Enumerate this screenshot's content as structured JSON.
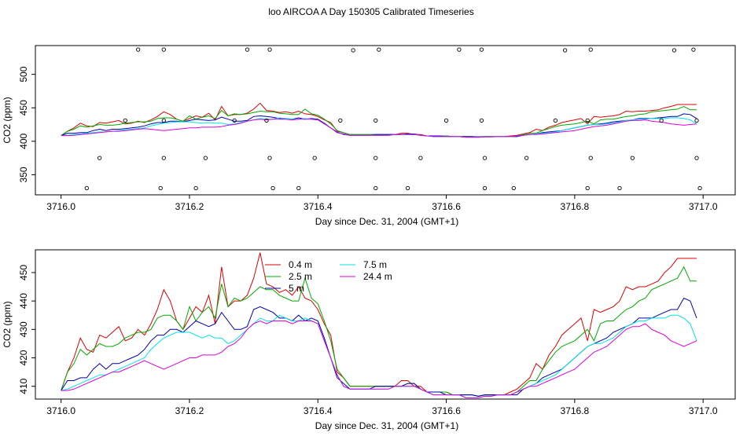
{
  "title": "loo AIRCOA A  Day 150305  Calibrated Timeseries",
  "colors": {
    "axis": "#000000",
    "series": [
      "#dd0000",
      "#00aa00",
      "#0000aa",
      "#00e5e5",
      "#dd00dd"
    ]
  },
  "chart_data": [
    {
      "type": "line",
      "title": "",
      "xlabel": "Day since Dec. 31, 2004 (GMT+1)",
      "ylabel": "CO2 (ppm)",
      "xlim": [
        3715.96,
        3717.05
      ],
      "ylim": [
        320,
        543
      ],
      "xticks": [
        "3716.0",
        "3716.2",
        "3716.4",
        "3716.6",
        "3716.8",
        "3717.0"
      ],
      "yticks": [
        "350",
        "400",
        "450",
        "500"
      ],
      "legend": false,
      "points": {
        "marker": "open-circle",
        "x": [
          3716.04,
          3716.06,
          3716.1,
          3716.12,
          3716.155,
          3716.16,
          3716.16,
          3716.16,
          3716.21,
          3716.225,
          3716.27,
          3716.29,
          3716.32,
          3716.325,
          3716.325,
          3716.33,
          3716.37,
          3716.395,
          3716.435,
          3716.455,
          3716.49,
          3716.49,
          3716.49,
          3716.495,
          3716.54,
          3716.56,
          3716.6,
          3716.62,
          3716.655,
          3716.655,
          3716.66,
          3716.66,
          3716.705,
          3716.725,
          3716.77,
          3716.785,
          3716.82,
          3716.82,
          3716.825,
          3716.825,
          3716.87,
          3716.89,
          3716.935,
          3716.955,
          3716.985,
          3716.99,
          3716.99,
          3716.995
        ],
        "y": [
          330,
          375,
          431,
          537,
          330,
          375,
          431,
          537,
          330,
          375,
          431,
          537,
          431,
          537,
          375,
          330,
          330,
          375,
          431,
          536,
          330,
          375,
          431,
          537,
          330,
          375,
          431,
          537,
          431,
          537,
          375,
          330,
          330,
          375,
          431,
          536,
          330,
          431,
          375,
          537,
          330,
          375,
          431,
          536,
          537,
          431,
          375,
          330
        ]
      },
      "note": "series data shared with the lower panel"
    },
    {
      "type": "line",
      "title": "",
      "xlabel": "Day since Dec. 31, 2004 (GMT+1)",
      "ylabel": "CO2 (ppm)",
      "xlim": [
        3715.96,
        3717.05
      ],
      "ylim": [
        405.5,
        458
      ],
      "xticks": [
        "3716.0",
        "3716.2",
        "3716.4",
        "3716.6",
        "3716.8",
        "3717.0"
      ],
      "yticks": [
        "410",
        "420",
        "430",
        "440",
        "450"
      ],
      "legend": true,
      "legend_position": "top-center",
      "legend_entries": [
        "0.4 m",
        "2.5 m",
        "5 m",
        "7.5 m",
        "24.4 m"
      ]
    }
  ],
  "series_x": {
    "start": 3716.0,
    "step": 0.01,
    "count": 100
  },
  "series": [
    {
      "name": "0.4 m",
      "values": [
        408.5,
        415,
        420,
        427,
        423,
        422,
        428,
        427,
        429,
        431,
        426,
        427,
        430,
        428,
        432,
        437,
        444,
        440,
        433,
        430,
        434,
        438,
        436,
        442,
        432,
        452,
        438,
        440,
        440,
        442,
        448,
        457,
        446,
        445,
        443,
        444,
        442,
        445,
        441,
        440,
        437,
        432,
        428,
        415,
        413,
        410,
        410,
        410,
        410,
        410,
        410,
        410,
        410,
        412,
        412,
        410,
        410,
        408,
        408,
        408,
        408,
        407,
        407,
        407,
        407,
        406.5,
        407,
        407,
        407,
        407,
        408,
        409,
        411,
        413,
        418,
        416,
        421,
        424,
        428,
        430,
        432,
        434,
        426,
        437,
        436,
        437,
        438,
        440,
        445,
        444,
        445,
        445,
        446,
        447,
        450,
        452,
        455,
        455,
        455,
        455
      ]
    },
    {
      "name": "2.5 m",
      "values": [
        408.5,
        415,
        418,
        423,
        421,
        423,
        425,
        424,
        424,
        425,
        427,
        428,
        429,
        429,
        430,
        434,
        435,
        435,
        433,
        430,
        438,
        433,
        436,
        438,
        434,
        446,
        438,
        441,
        440,
        441,
        443,
        445,
        444,
        444,
        442,
        441,
        440,
        440,
        448,
        441,
        439,
        433,
        426,
        416,
        413,
        410,
        410,
        410,
        410,
        410,
        410,
        410,
        410,
        410,
        411,
        411,
        409,
        408,
        408,
        408,
        408,
        407,
        407,
        407,
        407,
        406.5,
        407,
        407,
        407,
        407,
        407,
        408,
        410,
        412,
        412,
        416,
        419,
        422,
        424,
        425,
        426,
        428,
        430,
        426,
        432,
        433,
        433,
        435,
        437,
        438,
        440,
        441,
        444,
        445,
        446,
        447,
        448,
        452,
        447,
        447
      ]
    },
    {
      "name": "5 m",
      "values": [
        408.5,
        412,
        412,
        413,
        413,
        416,
        418,
        416,
        418,
        418,
        419,
        420,
        421,
        423,
        426,
        428,
        428,
        430,
        430,
        429,
        431,
        433,
        432,
        431,
        432,
        436,
        433,
        430,
        430,
        431,
        437,
        438,
        437,
        436,
        434,
        434,
        433,
        435,
        433,
        434,
        433,
        427,
        420,
        413,
        411,
        409,
        409,
        409,
        409,
        410,
        410,
        410,
        410,
        410,
        411,
        411,
        409,
        408,
        408,
        408,
        407,
        407,
        407,
        407,
        407,
        406.5,
        407,
        407,
        407,
        407,
        407,
        407,
        409,
        410,
        411,
        413,
        414,
        415,
        416,
        418,
        420,
        422,
        424,
        425,
        426,
        427,
        429,
        430,
        431,
        432,
        434,
        434,
        434,
        435,
        436,
        437,
        437,
        441,
        440,
        434
      ]
    },
    {
      "name": "7.5 m",
      "values": [
        408.5,
        409,
        410,
        411,
        412,
        413,
        414,
        414,
        415,
        416,
        417,
        418,
        419,
        420,
        423,
        425,
        427,
        428,
        429,
        429,
        429,
        428,
        427,
        428,
        427,
        427,
        425,
        426,
        428,
        430,
        432,
        434,
        433,
        433,
        435,
        434,
        433,
        433,
        434,
        433,
        432,
        426,
        420,
        414,
        410,
        409,
        409,
        409,
        409,
        409,
        409,
        409,
        410,
        410,
        410,
        410,
        409,
        408,
        407,
        407,
        407,
        407,
        407,
        406,
        406,
        406,
        406.5,
        406.5,
        407,
        407,
        407,
        408,
        409,
        410,
        411,
        412,
        413,
        414,
        416,
        418,
        420,
        422,
        424,
        425,
        425,
        426,
        427,
        429,
        431,
        432,
        433,
        433,
        434,
        434,
        434,
        435,
        435,
        434,
        432,
        426
      ]
    },
    {
      "name": "24.4 m",
      "values": [
        408.5,
        408.5,
        409,
        410,
        411,
        412,
        413,
        414,
        415,
        415,
        416,
        417,
        418,
        419,
        418,
        417,
        416,
        417,
        418,
        419,
        420,
        420,
        421,
        421,
        421,
        422,
        424,
        425,
        427,
        430,
        432,
        433,
        432,
        433,
        433,
        433,
        432,
        433,
        433,
        433,
        432,
        426,
        420,
        414,
        410,
        409,
        409,
        409,
        409,
        409,
        409,
        409,
        410,
        410,
        410,
        410,
        409,
        408,
        407,
        407,
        407,
        407,
        407,
        406,
        406,
        406,
        406.5,
        406.5,
        407,
        407,
        407,
        408,
        409,
        410,
        410,
        411,
        412,
        413,
        414,
        415,
        416,
        418,
        420,
        422,
        423,
        424,
        426,
        428,
        430,
        431,
        431,
        432,
        430,
        429,
        428,
        426,
        425,
        424,
        425,
        426
      ]
    }
  ]
}
